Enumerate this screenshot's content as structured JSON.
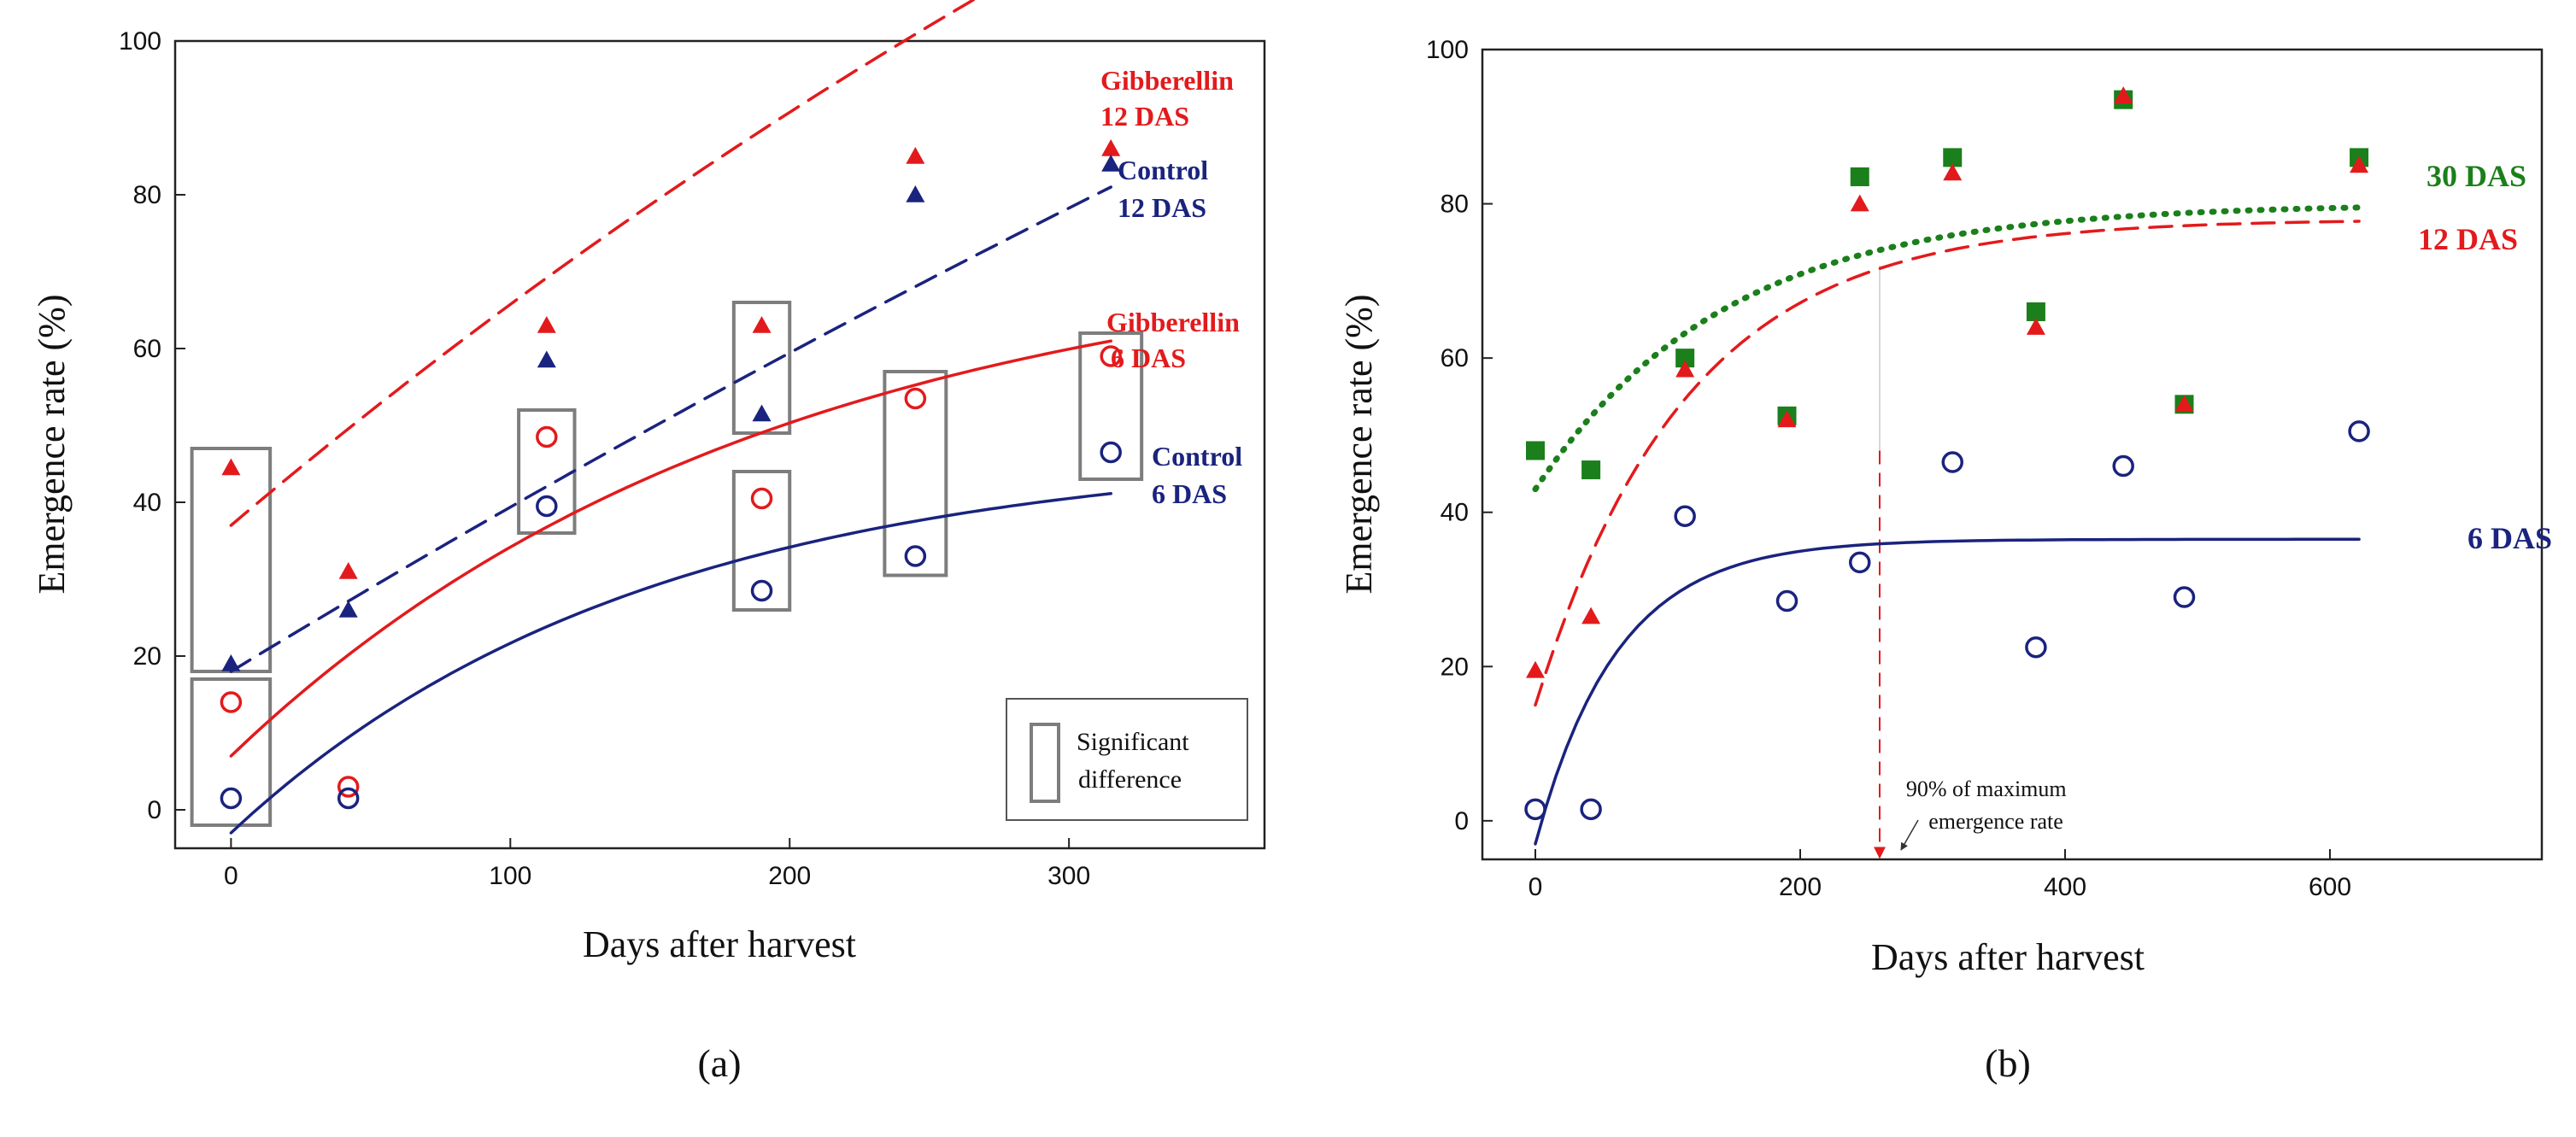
{
  "colors": {
    "red": "#e31a1c",
    "navy": "#1a237e",
    "green": "#1b7f1b",
    "box": "#7d7d7d",
    "frame": "#222222"
  },
  "chart_data": [
    {
      "panel": "(a)",
      "type": "scatter",
      "xlabel": "Days after harvest",
      "ylabel": "Emergence rate (%)",
      "xlim": [
        -20,
        370
      ],
      "ylim": [
        -5,
        100
      ],
      "xticks": [
        0,
        100,
        200,
        300
      ],
      "yticks": [
        0,
        20,
        40,
        60,
        80,
        100
      ],
      "series": [
        {
          "name": "Gibberellin 12 DAS",
          "color": "#e31a1c",
          "marker": "triangle",
          "x": [
            0,
            42,
            113,
            190,
            245,
            315
          ],
          "y": [
            44.5,
            31,
            63,
            63,
            85,
            86
          ],
          "fit": {
            "style": "dashed",
            "a": 37,
            "b": 220,
            "k": 0.0014
          }
        },
        {
          "name": "Control 12 DAS",
          "color": "#1a237e",
          "marker": "triangle",
          "x": [
            0,
            42,
            113,
            190,
            245,
            315
          ],
          "y": [
            19,
            26,
            58.5,
            51.5,
            80,
            84
          ],
          "fit": {
            "style": "dashed",
            "a": 18,
            "b": 350,
            "k": 0.00063
          }
        },
        {
          "name": "Gibberellin 6 DAS",
          "color": "#e31a1c",
          "marker": "circle",
          "x": [
            0,
            42,
            113,
            190,
            245,
            315
          ],
          "y": [
            14,
            3,
            48.5,
            40.5,
            53.5,
            59
          ],
          "fit": {
            "style": "solid",
            "a": 7,
            "b": 67,
            "k": 0.0052
          }
        },
        {
          "name": "Control 6 DAS",
          "color": "#1a237e",
          "marker": "circle",
          "x": [
            0,
            42,
            113,
            190,
            245,
            315
          ],
          "y": [
            1.5,
            1.5,
            39.5,
            28.5,
            33,
            46.5
          ],
          "fit": {
            "style": "solid",
            "a": -3,
            "b": 50,
            "k": 0.0068
          }
        }
      ],
      "significance_boxes": [
        {
          "x0": -14,
          "x1": 14,
          "y0": -2,
          "y1": 17
        },
        {
          "x0": -14,
          "x1": 14,
          "y0": 18,
          "y1": 47
        },
        {
          "x0": 103,
          "x1": 123,
          "y0": 36,
          "y1": 52
        },
        {
          "x0": 180,
          "x1": 200,
          "y0": 26,
          "y1": 44
        },
        {
          "x0": 180,
          "x1": 200,
          "y0": 49,
          "y1": 66
        },
        {
          "x0": 234,
          "x1": 256,
          "y0": 30.5,
          "y1": 57
        },
        {
          "x0": 304,
          "x1": 326,
          "y0": 43,
          "y1": 62
        }
      ],
      "annotations": [
        {
          "lines": [
            "Gibberellin",
            "12 DAS"
          ],
          "color": "#e31a1c"
        },
        {
          "lines": [
            "Control",
            "12 DAS"
          ],
          "color": "#1a237e"
        },
        {
          "lines": [
            "Gibberellin",
            "6 DAS"
          ],
          "color": "#e31a1c"
        },
        {
          "lines": [
            "Control",
            "6 DAS"
          ],
          "color": "#1a237e"
        }
      ],
      "legend": {
        "lines": [
          "Significant",
          "difference"
        ],
        "placement": "bottom-right"
      }
    },
    {
      "panel": "(b)",
      "type": "scatter",
      "xlabel": "Days after harvest",
      "ylabel": "Emergence rate (%)",
      "xlim": [
        -40,
        760
      ],
      "ylim": [
        -5,
        100
      ],
      "xticks": [
        0,
        200,
        400,
        600
      ],
      "yticks": [
        0,
        20,
        40,
        60,
        80,
        100
      ],
      "series": [
        {
          "name": "30 DAS",
          "color": "#1b7f1b",
          "marker": "square",
          "x": [
            0,
            42,
            113,
            190,
            245,
            315,
            378,
            444,
            490,
            622
          ],
          "y": [
            48,
            45.5,
            60,
            52.5,
            83.5,
            86,
            66,
            93.5,
            54,
            86
          ],
          "fit": {
            "style": "dotted",
            "a": 43,
            "b": 37,
            "k": 0.007
          }
        },
        {
          "name": "12 DAS",
          "color": "#e31a1c",
          "marker": "triangle",
          "x": [
            0,
            42,
            113,
            190,
            245,
            315,
            378,
            444,
            490,
            622
          ],
          "y": [
            19.5,
            26.5,
            58.5,
            52,
            80,
            84,
            64,
            94,
            54,
            85
          ],
          "fit": {
            "style": "dashed",
            "a": 15,
            "b": 63,
            "k": 0.0088
          }
        },
        {
          "name": "6 DAS",
          "color": "#1a237e",
          "marker": "circle",
          "x": [
            0,
            42,
            113,
            190,
            245,
            315,
            378,
            444,
            490,
            622
          ],
          "y": [
            1.5,
            1.5,
            39.5,
            28.5,
            33.5,
            46.5,
            22.5,
            46,
            29,
            50.5
          ],
          "fit": {
            "style": "solid",
            "a": -3,
            "b": 39.5,
            "k": 0.0162
          }
        }
      ],
      "reference_line": {
        "x": 260,
        "label_lines": [
          "90% of maximum",
          "emergence rate"
        ]
      },
      "annotations": [
        {
          "lines": [
            "30 DAS"
          ],
          "color": "#1b7f1b"
        },
        {
          "lines": [
            "12 DAS"
          ],
          "color": "#e31a1c"
        },
        {
          "lines": [
            "6 DAS"
          ],
          "color": "#1a237e"
        }
      ]
    }
  ]
}
